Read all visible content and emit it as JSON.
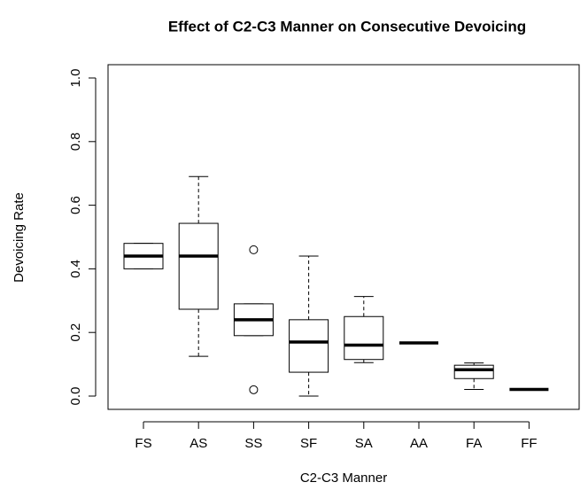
{
  "chart_data": {
    "type": "box",
    "title": "Effect of C2-C3 Manner on Consecutive Devoicing",
    "x_label": "C2-C3 Manner",
    "y_label": "Devoicing Rate",
    "categories": [
      "FS",
      "AS",
      "SS",
      "SF",
      "SA",
      "AA",
      "FA",
      "FF"
    ],
    "boxes": [
      {
        "min": 0.4,
        "q1": 0.4,
        "median": 0.44,
        "q3": 0.48,
        "max": 0.48,
        "outliers": []
      },
      {
        "min": 0.125,
        "q1": 0.273,
        "median": 0.44,
        "q3": 0.543,
        "max": 0.69,
        "outliers": []
      },
      {
        "min": 0.19,
        "q1": 0.19,
        "median": 0.24,
        "q3": 0.29,
        "max": 0.29,
        "outliers": [
          0.46,
          0.02
        ]
      },
      {
        "min": 0.0,
        "q1": 0.075,
        "median": 0.17,
        "q3": 0.24,
        "max": 0.44,
        "outliers": []
      },
      {
        "min": 0.105,
        "q1": 0.115,
        "median": 0.16,
        "q3": 0.25,
        "max": 0.313,
        "outliers": []
      },
      {
        "min": 0.167,
        "q1": 0.167,
        "median": 0.167,
        "q3": 0.167,
        "max": 0.167,
        "outliers": []
      },
      {
        "min": 0.021,
        "q1": 0.055,
        "median": 0.083,
        "q3": 0.097,
        "max": 0.104,
        "outliers": []
      },
      {
        "min": 0.021,
        "q1": 0.021,
        "median": 0.021,
        "q3": 0.021,
        "max": 0.021,
        "outliers": []
      }
    ],
    "ylim": [
      0,
      1
    ],
    "yticks": [
      {
        "value": 0,
        "label": "0.0"
      },
      {
        "value": 0.2,
        "label": "0.2"
      },
      {
        "value": 0.4,
        "label": "0.4"
      },
      {
        "value": 0.6,
        "label": "0.6"
      },
      {
        "value": 0.8,
        "label": "0.8"
      },
      {
        "value": 1,
        "label": "1.0"
      }
    ]
  }
}
